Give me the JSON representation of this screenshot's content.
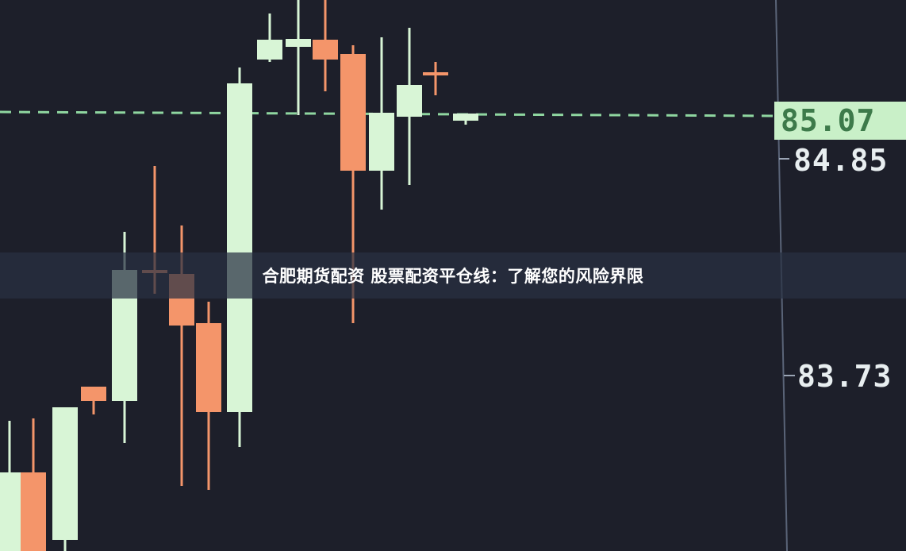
{
  "title": "合肥期货配资 股票配资平仓线：了解您的风险界限",
  "price_axis": {
    "current_price": "85.07",
    "labels": [
      "84.85",
      "83.73"
    ]
  },
  "colors": {
    "background": "#1d1f2a",
    "up_candle": "#d8f5d6",
    "down_candle": "#f4956a",
    "current_price_bg": "#c9f0c8",
    "dashed_line": "#8fd6a0"
  }
}
